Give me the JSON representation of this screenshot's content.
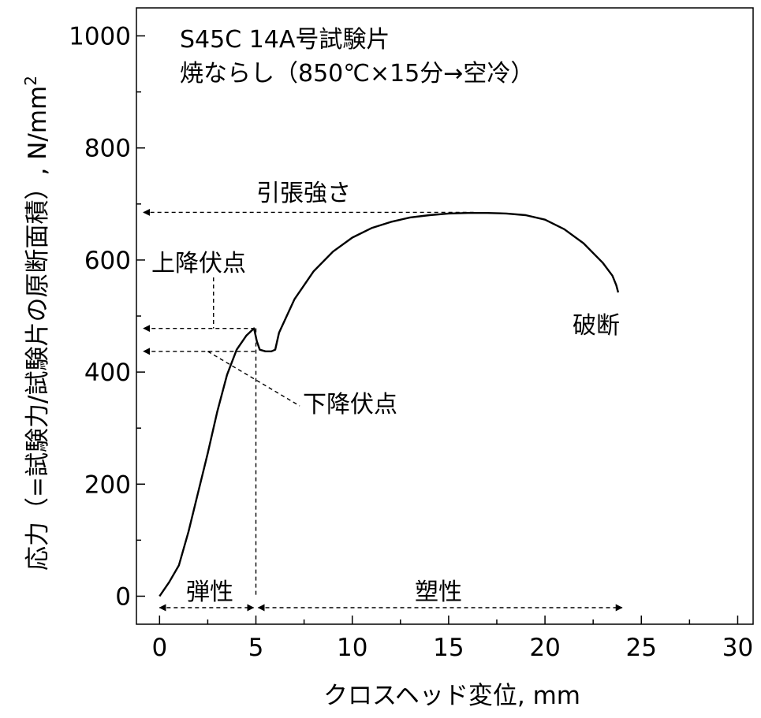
{
  "chart_data": {
    "type": "line",
    "title_lines": [
      "S45C 14A号試験片",
      "焼ならし（850℃×15分→空冷）"
    ],
    "xlabel": "クロスヘッド変位, mm",
    "ylabel_main": "応力（=試験力/試験片の原断面積）, N/mm",
    "ylabel_sup": "2",
    "xlim": [
      -1.2,
      30.8
    ],
    "ylim": [
      -50,
      1050
    ],
    "x_ticks": [
      0,
      5,
      10,
      15,
      20,
      25,
      30
    ],
    "y_ticks": [
      0,
      200,
      400,
      600,
      800,
      1000
    ],
    "x_tick_labels": [
      "0",
      "5",
      "10",
      "15",
      "20",
      "25",
      "30"
    ],
    "y_tick_labels": [
      "0",
      "200",
      "400",
      "600",
      "800",
      "1000"
    ],
    "grid": false,
    "series": [
      {
        "x": [
          0,
          0.2,
          0.5,
          1.0,
          1.5,
          2.0,
          2.5,
          3.0,
          3.5,
          4.0,
          4.5,
          4.9,
          5.05,
          5.2,
          5.5,
          5.8,
          6.0,
          6.2,
          7,
          8,
          9,
          10,
          11,
          12,
          13,
          14,
          15,
          16,
          17,
          18,
          19,
          20,
          21,
          22,
          23,
          23.5,
          23.7,
          23.8
        ],
        "y": [
          0,
          10,
          25,
          55,
          115,
          185,
          255,
          330,
          395,
          440,
          465,
          478,
          455,
          440,
          437,
          437,
          440,
          470,
          530,
          580,
          615,
          640,
          657,
          668,
          676,
          680,
          683,
          684,
          684,
          683,
          680,
          672,
          655,
          630,
          595,
          572,
          555,
          542
        ]
      }
    ],
    "annotations": {
      "tensile_strength": {
        "label": "引張強さ",
        "y": 685
      },
      "upper_yield": {
        "label": "上降伏点",
        "y": 478
      },
      "lower_yield": {
        "label": "下降伏点",
        "y": 437
      },
      "fracture": {
        "label": "破断"
      },
      "elastic": {
        "label": "弾性",
        "x_range": [
          0,
          5
        ]
      },
      "plastic": {
        "label": "塑性",
        "x_range": [
          5,
          24
        ]
      }
    }
  }
}
